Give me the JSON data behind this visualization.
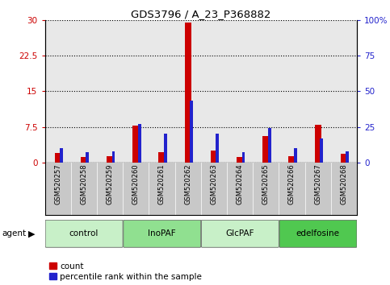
{
  "title": "GDS3796 / A_23_P368882",
  "samples": [
    "GSM520257",
    "GSM520258",
    "GSM520259",
    "GSM520260",
    "GSM520261",
    "GSM520262",
    "GSM520263",
    "GSM520264",
    "GSM520265",
    "GSM520266",
    "GSM520267",
    "GSM520268"
  ],
  "count_values": [
    2.0,
    1.2,
    1.3,
    7.8,
    2.2,
    29.5,
    2.5,
    1.2,
    5.5,
    1.3,
    8.0,
    1.8
  ],
  "percentile_values": [
    3.0,
    2.1,
    2.4,
    8.1,
    6.0,
    13.0,
    6.0,
    2.1,
    7.2,
    3.0,
    5.1,
    2.4
  ],
  "groups": [
    {
      "label": "control",
      "start": 0,
      "end": 3,
      "color": "#c8f0c8"
    },
    {
      "label": "InoPAF",
      "start": 3,
      "end": 6,
      "color": "#90e090"
    },
    {
      "label": "GlcPAF",
      "start": 6,
      "end": 9,
      "color": "#c8f0c8"
    },
    {
      "label": "edelfosine",
      "start": 9,
      "end": 12,
      "color": "#50c850"
    }
  ],
  "ylim_left": [
    0,
    30
  ],
  "yticks_left": [
    0,
    7.5,
    15,
    22.5,
    30
  ],
  "ytick_labels_left": [
    "0",
    "7.5",
    "15",
    "22.5",
    "30"
  ],
  "ytick_labels_right": [
    "0",
    "25",
    "50",
    "75",
    "100%"
  ],
  "bar_color_red": "#cc0000",
  "bar_color_blue": "#2222cc",
  "bg_color_plot": "#e8e8e8",
  "bg_color_fig": "#ffffff",
  "legend_count_label": "count",
  "legend_pct_label": "percentile rank within the sample",
  "agent_label": "agent",
  "left_tick_color": "#cc0000",
  "right_tick_color": "#2222cc",
  "red_bar_width": 0.25,
  "blue_bar_width": 0.12
}
